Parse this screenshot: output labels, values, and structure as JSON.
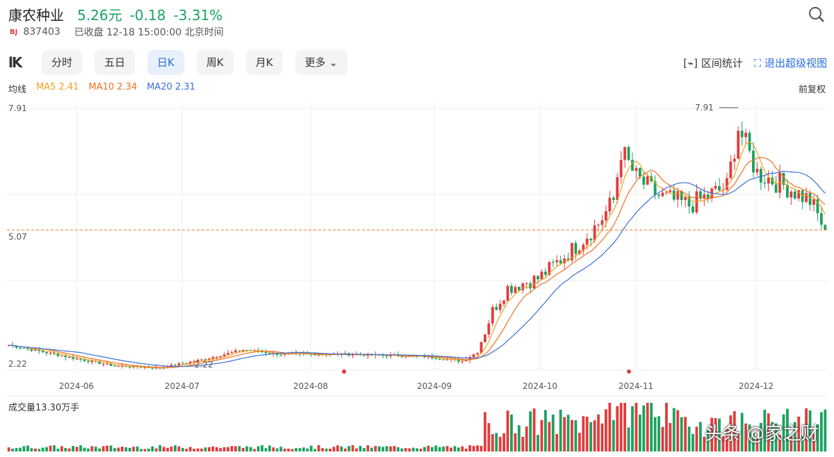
{
  "stock": {
    "name": "康农种业",
    "price": "5.26元",
    "change": "-0.18",
    "pct": "-3.31%",
    "badge": "BJ",
    "code": "837403",
    "status": "已收盘 12-18 15:00:00 北京时间"
  },
  "tabs": [
    "分时",
    "五日",
    "日K",
    "周K",
    "月K",
    "更多"
  ],
  "active_tab": "日K",
  "tools": {
    "range": "区间统计",
    "exit": "退出超级视图"
  },
  "ma": {
    "label": "均线",
    "ma5": "MA5 2.41",
    "ma10": "MA10 2.34",
    "ma20": "MA20 2.31",
    "adjust": "前复权"
  },
  "volume_label": "成交量13.30万手",
  "watermark": "头条 @家之财",
  "colors": {
    "up": "#e23c3c",
    "down": "#1aa260",
    "ma5": "#f0a020",
    "ma10": "#f07020",
    "ma20": "#3a6fd8",
    "accent": "#2b6de0"
  },
  "chart_data": {
    "type": "candlestick",
    "y_labels": [
      "7.91",
      "5.07",
      "2.22"
    ],
    "x_labels": [
      "2024-06",
      "2024-07",
      "2024-08",
      "2024-09",
      "2024-10",
      "2024-11",
      "2024-12"
    ],
    "high_annotation": "7.91",
    "low_annotation": "2.22",
    "last_close": 5.26,
    "anchors": [
      [
        0,
        2.75
      ],
      [
        8,
        2.62
      ],
      [
        18,
        2.45
      ],
      [
        28,
        2.3
      ],
      [
        40,
        2.25
      ],
      [
        52,
        2.45
      ],
      [
        62,
        2.65
      ],
      [
        72,
        2.55
      ],
      [
        90,
        2.55
      ],
      [
        110,
        2.5
      ],
      [
        120,
        2.4
      ],
      [
        124,
        2.6
      ],
      [
        128,
        3.5
      ],
      [
        132,
        4.0
      ],
      [
        140,
        4.2
      ],
      [
        150,
        4.9
      ],
      [
        156,
        5.4
      ],
      [
        160,
        5.9
      ],
      [
        162,
        7.0
      ],
      [
        166,
        6.4
      ],
      [
        172,
        6.0
      ],
      [
        180,
        5.8
      ],
      [
        190,
        6.2
      ],
      [
        193,
        7.5
      ],
      [
        198,
        6.5
      ],
      [
        206,
        6.2
      ],
      [
        212,
        5.9
      ],
      [
        216,
        5.26
      ]
    ]
  }
}
